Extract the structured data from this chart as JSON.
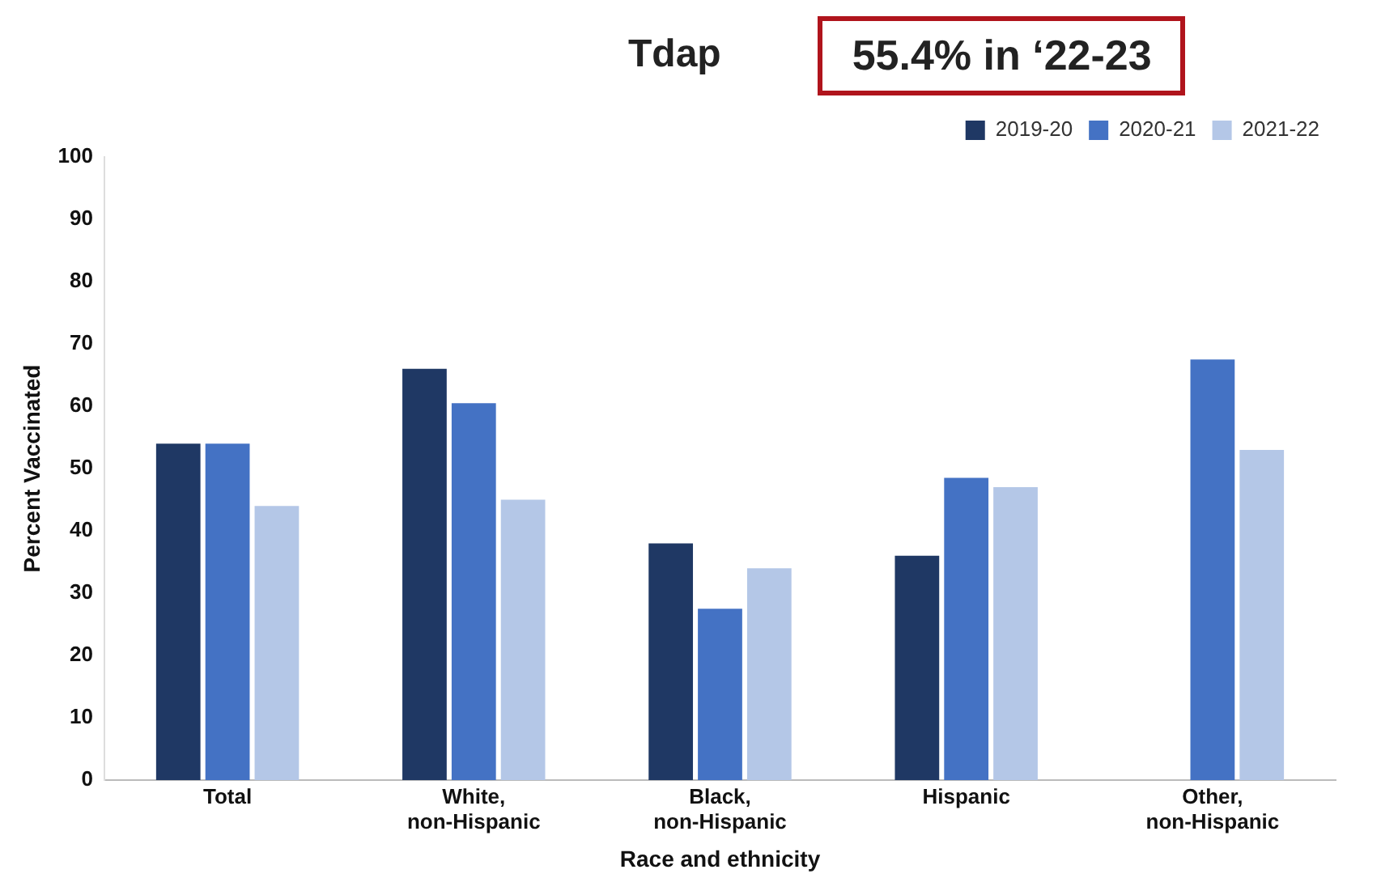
{
  "chart_data": {
    "type": "bar",
    "title": "Tdap",
    "subtitle": "55.4% in ‘22-23",
    "xlabel": "Race and ethnicity",
    "ylabel": "Percent Vaccinated",
    "categories": [
      "Total",
      "White,\nnon-Hispanic",
      "Black,\nnon-Hispanic",
      "Hispanic",
      "Other,\nnon-Hispanic"
    ],
    "series": [
      {
        "name": "2019-20",
        "color": "#1f3864",
        "values": [
          54,
          66,
          38,
          36,
          null
        ]
      },
      {
        "name": "2020-21",
        "color": "#4472c4",
        "values": [
          54,
          60.5,
          27.5,
          48.5,
          67.5
        ]
      },
      {
        "name": "2021-22",
        "color": "#b4c7e7",
        "values": [
          44,
          45,
          34,
          47,
          53
        ]
      }
    ],
    "ylim": [
      0,
      100
    ],
    "yticks": [
      0,
      10,
      20,
      30,
      40,
      50,
      60,
      70,
      80,
      90,
      100
    ],
    "grid": false,
    "legend": "top right"
  }
}
